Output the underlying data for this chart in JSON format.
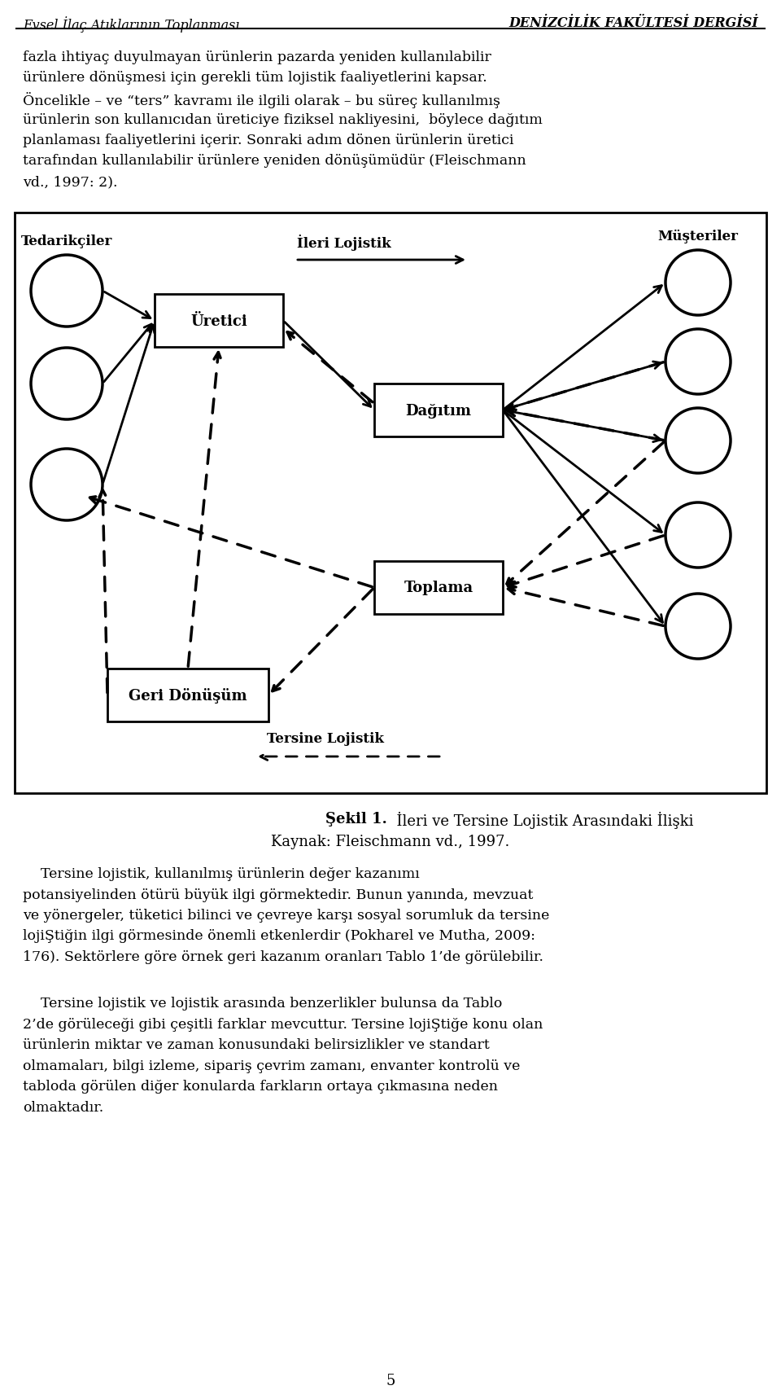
{
  "header_left": "Evsel İlaç Atıklarının Toplanması",
  "header_right": "DENİZCİLİK FAKÜLTESİ DERGİSİ",
  "label_tedarik": "Tedarikçiler",
  "label_musteriler": "Müşteriler",
  "label_uretici": "Üretici",
  "label_dagitim": "Dağıtım",
  "label_toplama": "Toplama",
  "label_geri": "Geri Dönüşüm",
  "label_ileri": "İleri Lojistik",
  "label_tersine": "Tersine Lojistik",
  "sekil_bold": "Şekil 1.",
  "sekil_normal": "  İleri ve Tersine Lojistik Arasındaki İlişki",
  "kaynak": "Kaynak: Fleischmann vd., 1997.",
  "page_num": "5",
  "para1_lines": [
    "fazla ihtiyaç duyulmayan ürünlerin pazarda yeniden kullanılabilir",
    "ürünlere dönüşmesi için gerekli tüm lojistik faaliyetlerini kapsar.",
    "Öncelikle – ve “ters” kavramı ile ilgili olarak – bu süreç kullanılmış",
    "ürünlerin son kullanıcıdan üreticiye fiziksel nakliyesini,  böylece dağıtım",
    "planlaması faaliyetlerini içerir. Sonraki adım dönen ürünlerin üretici",
    "tarafından kullanılabilir ürünlere yeniden dönüşümüdür (Fleischmann",
    "vd., 1997: 2)."
  ],
  "para2_lines": [
    "    Tersine lojistik, kullanılmış ürünlerin değer kazanımı",
    "potansiyelinden ötürü büyük ilgi görmektedir. Bunun yanında, mevzuat",
    "ve yönergeler, tüketici bilinci ve çevreye karşı sosyal sorumluk da tersine",
    "lojiŞtiğin ilgi görmesinde önemli etkenlerdir (Pokharel ve Mutha, 2009:",
    "176). Sektörlere göre örnek geri kazanım oranları Tablo 1’de görülebilir."
  ],
  "para3_lines": [
    "    Tersine lojistik ve lojistik arasında benzerlikler bulunsa da Tablo",
    "2’de görüleceği gibi çeşitli farklar mevcuttur. Tersine lojiŞtiğe konu olan",
    "ürünlerin miktar ve zaman konusundaki belirsizlikler ve standart",
    "olmamaları, bilgi izleme, sipariş çevrim zamanı, envanter kontrolü ve",
    "tabloda görülen diğer konularda farkların ortaya çıkmasına neden",
    "olmaktadır."
  ]
}
